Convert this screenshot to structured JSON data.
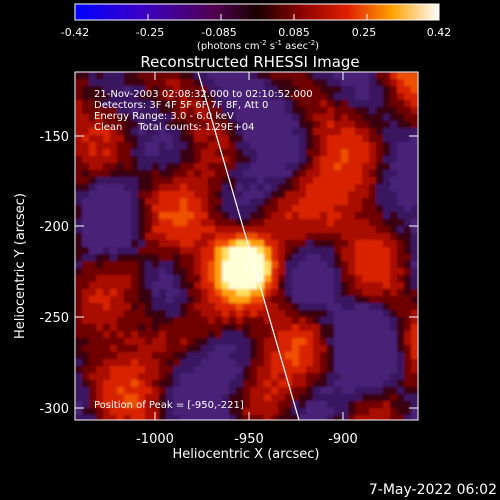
{
  "colorbar": {
    "tick_labels": [
      "-0.42",
      "-0.25",
      "-0.085",
      "0.085",
      "0.25",
      "0.42"
    ],
    "units_prefix": "(photons cm",
    "units_exp1": "-2",
    "units_mid": " s",
    "units_exp2": "-1",
    "units_asec": " asec",
    "units_exp3": "-2",
    "units_suffix": ")"
  },
  "image": {
    "title": "Reconstructed RHESSI Image",
    "info_lines": [
      "21-Nov-2003 02:08:32.000 to 02:10:52.000",
      "Detectors: 3F 4F 5F 6F 7F 8F, Att 0",
      "Energy Range: 3.0 - 6.0 keV",
      "Clean     Total counts: 1.29E+04"
    ],
    "peak_label": "Position of Peak = [-950,-221]"
  },
  "axes": {
    "x_label": "Heliocentric X (arcsec)",
    "y_label": "Heliocentric Y (arcsec)",
    "x_ticks": [
      "-1000",
      "-950",
      "-900"
    ],
    "y_ticks": [
      "-150",
      "-200",
      "-250",
      "-300"
    ]
  },
  "footer": {
    "timestamp": "7-May-2022 06:02"
  }
}
